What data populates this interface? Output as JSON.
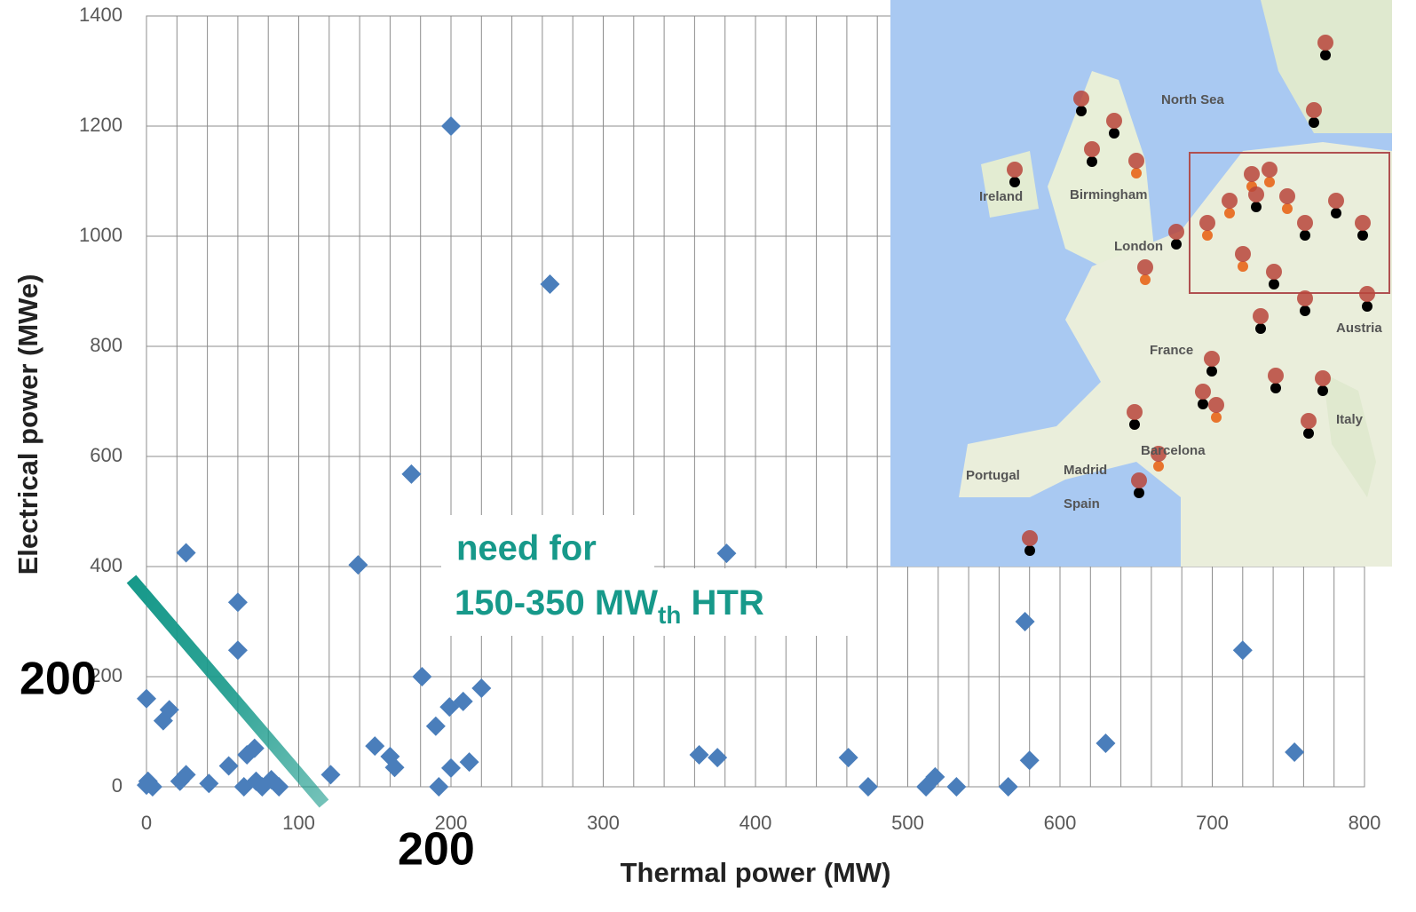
{
  "chart_data": {
    "type": "scatter",
    "x_label": "Thermal power (MW)",
    "y_label": "Electrical power (MWe)",
    "color": "#4a7ebb",
    "xlim": [
      0,
      800
    ],
    "ylim": [
      0,
      1400
    ],
    "xticks": [
      0,
      100,
      200,
      300,
      400,
      500,
      600,
      700,
      800
    ],
    "yticks": [
      0,
      200,
      400,
      600,
      800,
      1000,
      1200,
      1400
    ],
    "xgrid": [
      0,
      20,
      40,
      60,
      80,
      100,
      120,
      140,
      160,
      180,
      200,
      220,
      240,
      260,
      280,
      300,
      320,
      340,
      360,
      380,
      400,
      420,
      440,
      460,
      480,
      500,
      520,
      540,
      560,
      580,
      600,
      620,
      640,
      660,
      680,
      700,
      720,
      740,
      760,
      780,
      800
    ],
    "grid": true,
    "x": [
      0,
      1,
      4,
      0,
      11,
      15,
      26,
      22,
      26,
      41,
      54,
      60,
      60,
      64,
      66,
      71,
      72,
      76,
      82,
      87,
      121,
      139,
      150,
      160,
      163,
      174,
      181,
      190,
      192,
      200,
      200,
      199,
      208,
      212,
      220,
      265,
      363,
      375,
      381,
      461,
      474,
      512,
      518,
      532,
      566,
      577,
      580,
      630,
      720,
      754
    ],
    "y": [
      160,
      10,
      0,
      3,
      120,
      140,
      425,
      10,
      22,
      6,
      38,
      335,
      248,
      0,
      58,
      70,
      10,
      0,
      13,
      0,
      22,
      403,
      74,
      55,
      35,
      568,
      200,
      110,
      0,
      1200,
      34,
      145,
      155,
      45,
      179,
      913,
      58,
      53,
      424,
      53,
      0,
      0,
      18,
      0,
      0,
      300,
      48,
      79,
      248,
      63
    ]
  },
  "annotation": {
    "line1": "need for",
    "line2": [
      "150-350 MW",
      "th",
      " HTR"
    ],
    "left_mark": "200",
    "bottom_mark": "200"
  },
  "map": {
    "labels": [
      "Ireland",
      "Portugal",
      "Spain",
      "France",
      "Italy",
      "Madrid",
      "London",
      "Birmingham",
      "Barcelona",
      "North Sea",
      "Austria"
    ]
  }
}
